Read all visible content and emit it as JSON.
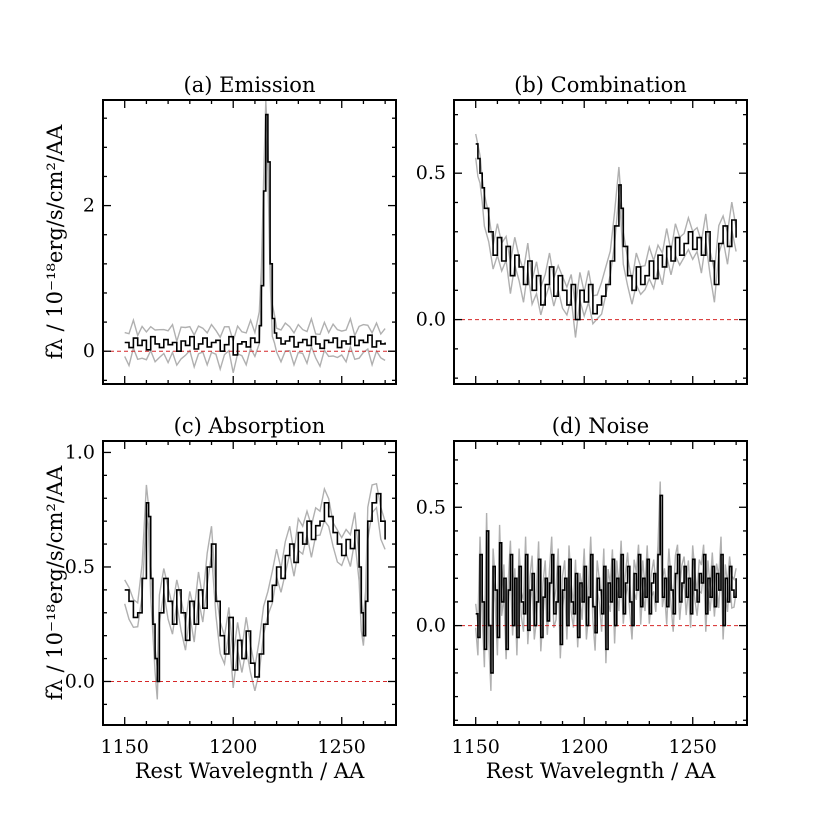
{
  "figure": {
    "xlabel": "Rest Wavelegnth / AA",
    "ylabel": "fλ / 10⁻¹⁸erg/s/cm²/AA",
    "xlim": [
      1140,
      1275
    ],
    "xticks": [
      1150,
      1200,
      1250
    ],
    "colors": {
      "flux": "#000000",
      "error_band": "#b0b0b0",
      "zero_line": "#d62728"
    }
  },
  "chart_data": [
    {
      "type": "line",
      "title": "(a) Emission",
      "xlim": [
        1140,
        1275
      ],
      "ylim": [
        -0.45,
        3.45
      ],
      "yticks": [
        0,
        2
      ],
      "ytick_labels": [
        "0",
        "2"
      ],
      "series": [
        {
          "kind": "step",
          "x": [
            1150,
            1152,
            1154,
            1156,
            1158,
            1160,
            1162,
            1164,
            1166,
            1168,
            1170,
            1172,
            1174,
            1176,
            1178,
            1180,
            1182,
            1184,
            1186,
            1188,
            1190,
            1192,
            1194,
            1196,
            1198,
            1200,
            1202,
            1204,
            1206,
            1208,
            1210,
            1212,
            1213,
            1214,
            1215,
            1216,
            1217,
            1218,
            1219,
            1220,
            1222,
            1224,
            1226,
            1228,
            1230,
            1232,
            1234,
            1236,
            1238,
            1240,
            1242,
            1244,
            1246,
            1248,
            1250,
            1252,
            1254,
            1256,
            1258,
            1260,
            1262,
            1264,
            1266,
            1268,
            1270
          ],
          "y": [
            0.12,
            0.05,
            0.18,
            0.08,
            0.15,
            0.02,
            0.2,
            0.1,
            0.05,
            0.16,
            0.09,
            0.12,
            0.0,
            0.14,
            0.08,
            0.2,
            0.03,
            0.1,
            0.18,
            0.06,
            0.12,
            0.15,
            0.0,
            0.09,
            0.2,
            -0.05,
            0.1,
            0.13,
            0.06,
            0.18,
            0.12,
            0.35,
            0.9,
            2.2,
            3.25,
            2.6,
            1.2,
            0.45,
            0.25,
            0.18,
            0.1,
            0.14,
            0.2,
            0.06,
            0.12,
            0.16,
            0.08,
            0.2,
            0.1,
            0.04,
            0.15,
            0.12,
            0.18,
            0.05,
            0.14,
            0.1,
            0.2,
            0.08,
            0.15,
            0.12,
            0.22,
            0.06,
            0.14,
            0.1,
            0.12
          ]
        }
      ]
    },
    {
      "type": "line",
      "title": "(b) Combination",
      "xlim": [
        1140,
        1275
      ],
      "ylim": [
        -0.22,
        0.75
      ],
      "yticks": [
        0.0,
        0.5
      ],
      "ytick_labels": [
        "0.0",
        "0.5"
      ],
      "series": [
        {
          "kind": "step",
          "x": [
            1150,
            1151,
            1152,
            1153,
            1154,
            1156,
            1158,
            1160,
            1162,
            1164,
            1166,
            1168,
            1170,
            1172,
            1174,
            1176,
            1178,
            1180,
            1182,
            1184,
            1186,
            1188,
            1190,
            1192,
            1194,
            1196,
            1198,
            1200,
            1202,
            1204,
            1206,
            1208,
            1210,
            1212,
            1214,
            1216,
            1217,
            1218,
            1220,
            1222,
            1224,
            1226,
            1228,
            1230,
            1232,
            1234,
            1236,
            1238,
            1240,
            1242,
            1244,
            1246,
            1248,
            1250,
            1252,
            1254,
            1256,
            1258,
            1260,
            1262,
            1264,
            1266,
            1268,
            1270
          ],
          "y": [
            0.6,
            0.55,
            0.5,
            0.45,
            0.38,
            0.3,
            0.22,
            0.28,
            0.2,
            0.25,
            0.15,
            0.22,
            0.18,
            0.12,
            0.2,
            0.1,
            0.15,
            0.05,
            0.12,
            0.18,
            0.08,
            0.15,
            0.1,
            0.05,
            0.12,
            0.0,
            0.1,
            0.06,
            0.12,
            0.02,
            0.05,
            0.08,
            0.12,
            0.2,
            0.32,
            0.46,
            0.38,
            0.25,
            0.15,
            0.1,
            0.18,
            0.12,
            0.15,
            0.2,
            0.14,
            0.22,
            0.18,
            0.25,
            0.2,
            0.28,
            0.22,
            0.26,
            0.3,
            0.24,
            0.28,
            0.22,
            0.3,
            0.2,
            0.12,
            0.26,
            0.32,
            0.25,
            0.34,
            0.28
          ]
        }
      ],
      "reference_line": 0
    },
    {
      "type": "line",
      "title": "(c) Absorption",
      "xlim": [
        1140,
        1275
      ],
      "ylim": [
        -0.19,
        1.05
      ],
      "yticks": [
        0.0,
        0.5,
        1.0
      ],
      "ytick_labels": [
        "0.0",
        "0.5",
        "1.0"
      ],
      "series": [
        {
          "kind": "step",
          "x": [
            1150,
            1152,
            1154,
            1156,
            1158,
            1160,
            1161,
            1162,
            1163,
            1164,
            1165,
            1166,
            1168,
            1170,
            1172,
            1174,
            1176,
            1178,
            1180,
            1182,
            1184,
            1186,
            1188,
            1190,
            1192,
            1194,
            1196,
            1198,
            1200,
            1202,
            1204,
            1206,
            1208,
            1210,
            1212,
            1214,
            1216,
            1218,
            1220,
            1222,
            1224,
            1226,
            1228,
            1230,
            1232,
            1234,
            1236,
            1238,
            1240,
            1242,
            1244,
            1246,
            1248,
            1250,
            1252,
            1254,
            1256,
            1258,
            1259,
            1260,
            1261,
            1262,
            1264,
            1266,
            1268,
            1270
          ],
          "y": [
            0.4,
            0.35,
            0.28,
            0.3,
            0.45,
            0.78,
            0.72,
            0.45,
            0.25,
            0.1,
            0.0,
            0.3,
            0.45,
            0.35,
            0.25,
            0.4,
            0.3,
            0.18,
            0.35,
            0.25,
            0.4,
            0.32,
            0.5,
            0.6,
            0.35,
            0.2,
            0.12,
            0.28,
            0.05,
            0.18,
            0.1,
            0.22,
            0.08,
            0.02,
            0.12,
            0.25,
            0.35,
            0.42,
            0.5,
            0.45,
            0.55,
            0.6,
            0.52,
            0.65,
            0.6,
            0.7,
            0.62,
            0.68,
            0.7,
            0.78,
            0.72,
            0.65,
            0.6,
            0.55,
            0.62,
            0.58,
            0.66,
            0.5,
            0.3,
            0.2,
            0.35,
            0.7,
            0.78,
            0.82,
            0.7,
            0.62
          ]
        }
      ],
      "reference_line": 0
    },
    {
      "type": "line",
      "title": "(d) Noise",
      "xlim": [
        1140,
        1275
      ],
      "ylim": [
        -0.42,
        0.78
      ],
      "yticks": [
        0.0,
        0.5
      ],
      "ytick_labels": [
        "0.0",
        "0.5"
      ],
      "series": [
        {
          "kind": "step",
          "x": [
            1150,
            1151,
            1152,
            1153,
            1154,
            1155,
            1156,
            1157,
            1158,
            1159,
            1160,
            1161,
            1162,
            1163,
            1164,
            1165,
            1166,
            1167,
            1168,
            1169,
            1170,
            1171,
            1172,
            1173,
            1174,
            1175,
            1176,
            1177,
            1178,
            1179,
            1180,
            1181,
            1182,
            1183,
            1184,
            1185,
            1186,
            1187,
            1188,
            1189,
            1190,
            1191,
            1192,
            1193,
            1194,
            1195,
            1196,
            1197,
            1198,
            1199,
            1200,
            1201,
            1202,
            1203,
            1204,
            1205,
            1206,
            1207,
            1208,
            1209,
            1210,
            1211,
            1212,
            1213,
            1214,
            1215,
            1216,
            1217,
            1218,
            1219,
            1220,
            1221,
            1222,
            1223,
            1224,
            1225,
            1226,
            1227,
            1228,
            1229,
            1230,
            1231,
            1232,
            1233,
            1234,
            1235,
            1236,
            1237,
            1238,
            1239,
            1240,
            1241,
            1242,
            1243,
            1244,
            1245,
            1246,
            1247,
            1248,
            1249,
            1250,
            1251,
            1252,
            1253,
            1254,
            1255,
            1256,
            1257,
            1258,
            1259,
            1260,
            1261,
            1262,
            1263,
            1264,
            1265,
            1266,
            1267,
            1268,
            1269,
            1270
          ],
          "y": [
            0.05,
            -0.05,
            0.3,
            0.1,
            -0.1,
            0.4,
            0.0,
            -0.2,
            0.25,
            0.15,
            -0.05,
            0.35,
            0.1,
            0.2,
            -0.1,
            0.15,
            0.3,
            0.0,
            0.2,
            -0.05,
            0.25,
            0.1,
            0.05,
            0.3,
            -0.02,
            0.15,
            0.22,
            0.0,
            0.1,
            0.28,
            -0.05,
            0.12,
            0.2,
            0.02,
            0.18,
            0.3,
            0.05,
            0.1,
            0.25,
            -0.08,
            0.15,
            0.2,
            0.0,
            0.28,
            0.1,
            0.05,
            0.22,
            -0.05,
            0.18,
            0.1,
            0.25,
            0.0,
            0.12,
            0.3,
            0.08,
            -0.03,
            0.2,
            0.15,
            0.05,
            0.25,
            -0.1,
            0.18,
            0.1,
            0.28,
            0.0,
            0.2,
            0.12,
            0.3,
            0.05,
            0.18,
            0.25,
            0.1,
            0.0,
            0.22,
            0.15,
            0.3,
            0.08,
            0.2,
            0.12,
            0.28,
            0.05,
            0.18,
            0.22,
            0.1,
            0.3,
            0.55,
            0.12,
            0.2,
            0.08,
            0.25,
            0.15,
            0.05,
            0.22,
            0.3,
            0.1,
            0.18,
            0.25,
            0.12,
            0.2,
            0.05,
            0.28,
            0.15,
            0.1,
            0.22,
            0.18,
            0.3,
            0.05,
            0.2,
            0.12,
            0.25,
            0.08,
            0.22,
            0.15,
            0.3,
            0.0,
            0.2,
            0.1,
            0.25,
            0.15,
            0.12,
            0.2
          ]
        }
      ],
      "reference_line": 0
    }
  ]
}
